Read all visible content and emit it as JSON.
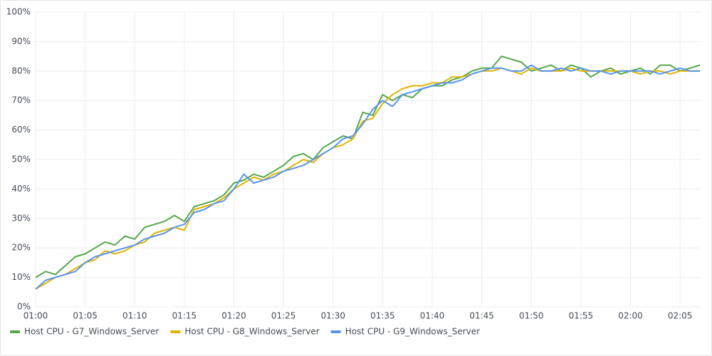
{
  "chart_data": {
    "type": "line",
    "x": [
      "01:00",
      "01:01",
      "01:02",
      "01:03",
      "01:04",
      "01:05",
      "01:06",
      "01:07",
      "01:08",
      "01:09",
      "01:10",
      "01:11",
      "01:12",
      "01:13",
      "01:14",
      "01:15",
      "01:16",
      "01:17",
      "01:18",
      "01:19",
      "01:20",
      "01:21",
      "01:22",
      "01:23",
      "01:24",
      "01:25",
      "01:26",
      "01:27",
      "01:28",
      "01:29",
      "01:30",
      "01:31",
      "01:32",
      "01:33",
      "01:34",
      "01:35",
      "01:36",
      "01:37",
      "01:38",
      "01:39",
      "01:40",
      "01:41",
      "01:42",
      "01:43",
      "01:44",
      "01:45",
      "01:46",
      "01:47",
      "01:48",
      "01:49",
      "01:50",
      "01:51",
      "01:52",
      "01:53",
      "01:54",
      "01:55",
      "01:56",
      "01:57",
      "01:58",
      "01:59",
      "02:00",
      "02:01",
      "02:02",
      "02:03",
      "02:04",
      "02:05",
      "02:06",
      "02:07"
    ],
    "series": [
      {
        "name": "Host CPU - G7_Windows_Server",
        "color": "#56a64b",
        "values": [
          10,
          12,
          11,
          14,
          17,
          18,
          20,
          22,
          21,
          24,
          23,
          27,
          28,
          29,
          31,
          29,
          34,
          35,
          36,
          38,
          42,
          43,
          45,
          44,
          46,
          48,
          51,
          52,
          50,
          54,
          56,
          58,
          57,
          66,
          65,
          72,
          70,
          72,
          71,
          74,
          75,
          75,
          77,
          78,
          80,
          81,
          81,
          85,
          84,
          83,
          80,
          81,
          82,
          80,
          82,
          81,
          78,
          80,
          81,
          79,
          80,
          81,
          79,
          82,
          82,
          80,
          81,
          82
        ]
      },
      {
        "name": "Host CPU - G8_Windows_Server",
        "color": "#e0b400",
        "values": [
          6,
          8,
          10,
          11,
          13,
          15,
          16,
          19,
          18,
          19,
          21,
          22,
          25,
          26,
          27,
          26,
          33,
          34,
          35,
          37,
          40,
          42,
          44,
          43,
          45,
          46,
          48,
          50,
          49,
          52,
          54,
          55,
          57,
          63,
          64,
          69,
          72,
          74,
          75,
          75,
          76,
          76,
          78,
          78,
          79,
          80,
          80,
          81,
          80,
          79,
          81,
          80,
          80,
          80,
          81,
          80,
          80,
          80,
          80,
          80,
          80,
          79,
          80,
          80,
          79,
          80,
          80,
          80
        ]
      },
      {
        "name": "Host CPU - G9_Windows_Server",
        "color": "#5794f2",
        "values": [
          6,
          9,
          10,
          11,
          12,
          15,
          17,
          18,
          19,
          20,
          21,
          23,
          24,
          25,
          27,
          28,
          32,
          33,
          35,
          36,
          40,
          45,
          42,
          43,
          44,
          46,
          47,
          48,
          50,
          52,
          54,
          57,
          58,
          62,
          67,
          70,
          68,
          72,
          73,
          74,
          75,
          76,
          76,
          77,
          79,
          80,
          81,
          81,
          80,
          80,
          82,
          80,
          80,
          81,
          80,
          81,
          80,
          80,
          79,
          80,
          80,
          80,
          80,
          79,
          80,
          81,
          80,
          80
        ]
      }
    ],
    "ylim": [
      0,
      100
    ],
    "yticks": [
      {
        "value": 0,
        "label": "0%"
      },
      {
        "value": 10,
        "label": "10%"
      },
      {
        "value": 20,
        "label": "20%"
      },
      {
        "value": 30,
        "label": "30%"
      },
      {
        "value": 40,
        "label": "40%"
      },
      {
        "value": 50,
        "label": "50%"
      },
      {
        "value": 60,
        "label": "60%"
      },
      {
        "value": 70,
        "label": "70%"
      },
      {
        "value": 80,
        "label": "80%"
      },
      {
        "value": 90,
        "label": "90%"
      },
      {
        "value": 100,
        "label": "100%"
      }
    ],
    "grid": true,
    "legend": "bottom"
  }
}
